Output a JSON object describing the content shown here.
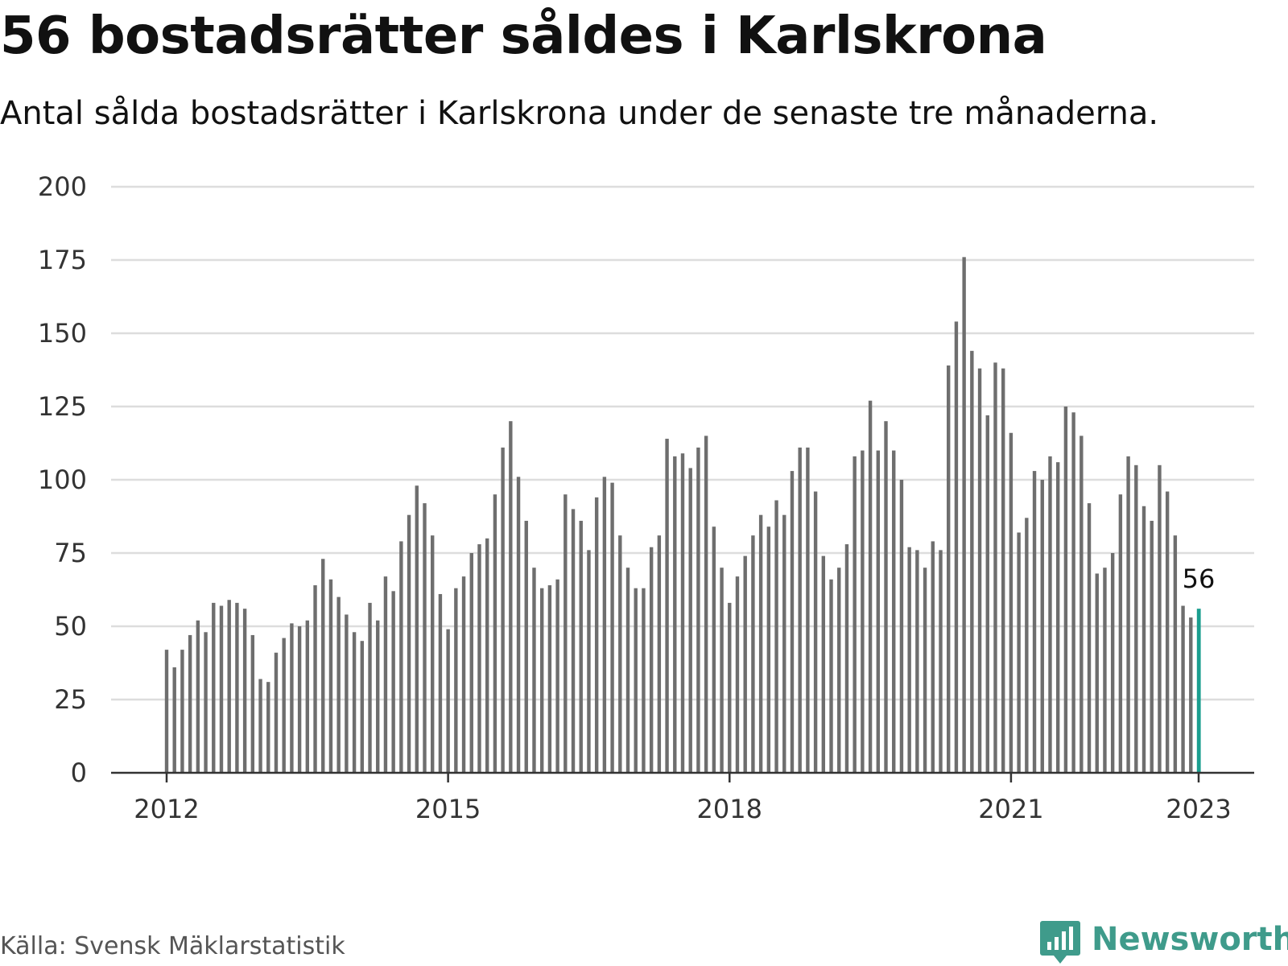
{
  "title": "56 bostadsrätter såldes i Karlskrona",
  "subtitle": "Antal sålda bostadsrätter i Karlskrona under de senaste tre månaderna.",
  "source": "Källa: Svensk Mäklarstatistik",
  "brand": {
    "name": "Newsworthy",
    "icon": "newsworthy-logo-icon",
    "color": "#3f9b8b"
  },
  "chart_data": {
    "type": "bar",
    "x_start": "2012-01",
    "x_end": "2023-01",
    "frequency": "monthly",
    "ylim": [
      0,
      200
    ],
    "yticks": [
      "0",
      "25",
      "50",
      "75",
      "100",
      "125",
      "150",
      "175",
      "200"
    ],
    "xticks": [
      "2012",
      "2015",
      "2018",
      "2021",
      "2023"
    ],
    "values": [
      42,
      36,
      42,
      47,
      52,
      48,
      58,
      57,
      59,
      58,
      56,
      47,
      32,
      31,
      41,
      46,
      51,
      50,
      52,
      64,
      73,
      66,
      60,
      54,
      48,
      45,
      58,
      52,
      67,
      62,
      79,
      88,
      98,
      92,
      81,
      61,
      49,
      63,
      67,
      75,
      78,
      80,
      95,
      111,
      120,
      101,
      86,
      70,
      63,
      64,
      66,
      95,
      90,
      86,
      76,
      94,
      101,
      99,
      81,
      70,
      63,
      63,
      77,
      81,
      114,
      108,
      109,
      104,
      111,
      115,
      84,
      70,
      58,
      67,
      74,
      81,
      88,
      84,
      93,
      88,
      103,
      111,
      111,
      96,
      74,
      66,
      70,
      78,
      108,
      110,
      127,
      110,
      120,
      110,
      100,
      77,
      76,
      70,
      79,
      76,
      139,
      154,
      176,
      144,
      138,
      122,
      140,
      138,
      116,
      82,
      87,
      103,
      100,
      108,
      106,
      125,
      123,
      115,
      92,
      68,
      70,
      75,
      95,
      108,
      105,
      91,
      86,
      105,
      96,
      81,
      57,
      53,
      56
    ],
    "bar_color": "#6e6e6e",
    "highlight_color": "#1a9e8f",
    "highlight_label": "56",
    "grid": true,
    "legend": "none"
  }
}
